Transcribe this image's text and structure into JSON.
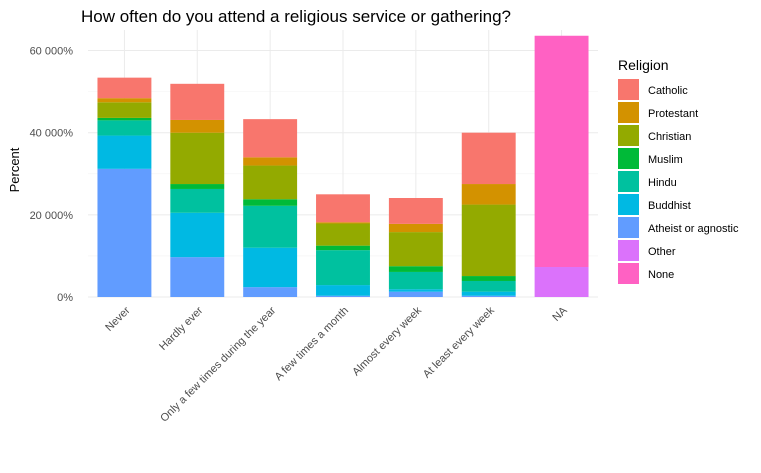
{
  "chart_data": {
    "type": "bar",
    "stacked": true,
    "title": "How often do you attend a religious service or gathering?",
    "xlabel": "",
    "ylabel": "Percent",
    "ylim": [
      0,
      65000
    ],
    "yticks": [
      0,
      20000,
      40000,
      60000
    ],
    "ytick_labels": [
      "0%",
      "20 000%",
      "40 000%",
      "60 000%"
    ],
    "categories": [
      "Never",
      "Hardly ever",
      "Only a few times during the year",
      "A few times a month",
      "Almost every week",
      "At least every week",
      "NA"
    ],
    "legend_title": "Religion",
    "legend_position": "right",
    "series": [
      {
        "name": "Atheist or agnostic",
        "color": "#619CFF",
        "values": [
          31200,
          9700,
          2400,
          300,
          1300,
          300,
          0
        ]
      },
      {
        "name": "Buddhist",
        "color": "#00B9E3",
        "values": [
          8100,
          10800,
          9600,
          2600,
          600,
          1000,
          0
        ]
      },
      {
        "name": "Hindu",
        "color": "#00C19F",
        "values": [
          3700,
          5800,
          10200,
          8500,
          4200,
          2600,
          0
        ]
      },
      {
        "name": "Muslim",
        "color": "#00BA38",
        "values": [
          600,
          1200,
          1600,
          1100,
          1400,
          1200,
          0
        ]
      },
      {
        "name": "Christian",
        "color": "#93AA00",
        "values": [
          3800,
          12500,
          8200,
          5400,
          8300,
          17400,
          0
        ]
      },
      {
        "name": "Protestant",
        "color": "#D39200",
        "values": [
          1000,
          3100,
          2000,
          300,
          2000,
          5000,
          0
        ]
      },
      {
        "name": "Catholic",
        "color": "#F8766D",
        "values": [
          5000,
          8800,
          9300,
          6800,
          6300,
          12500,
          0
        ]
      },
      {
        "name": "Other",
        "color": "#DB72FB",
        "values": [
          0,
          0,
          0,
          0,
          0,
          0,
          7300
        ]
      },
      {
        "name": "None",
        "color": "#FF61C3",
        "values": [
          0,
          0,
          0,
          0,
          0,
          0,
          56300
        ]
      }
    ],
    "legend_order": [
      "Catholic",
      "Protestant",
      "Christian",
      "Muslim",
      "Hindu",
      "Buddhist",
      "Atheist or agnostic",
      "Other",
      "None"
    ],
    "grid": true
  }
}
